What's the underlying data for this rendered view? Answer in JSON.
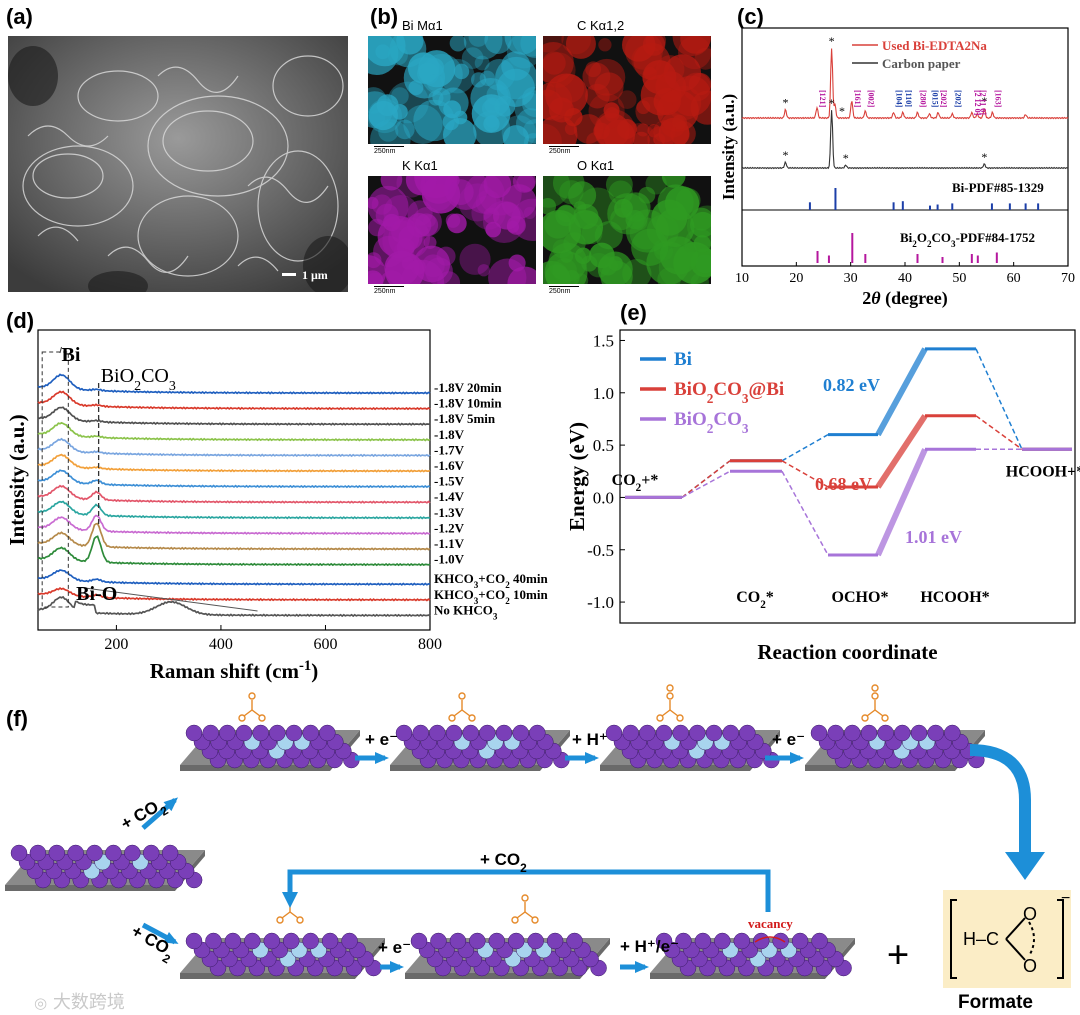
{
  "panels": {
    "a": {
      "label": "(a)",
      "scalebar": "1 μm"
    },
    "b": {
      "label": "(b)",
      "maps": [
        {
          "title": "Bi Mα1",
          "scalebar": "250nm",
          "color": "#2aa7c4"
        },
        {
          "title": "C Kα1,2",
          "scalebar": "250nm",
          "color": "#b81b12"
        },
        {
          "title": "K Kα1",
          "scalebar": "250nm",
          "color": "#a21aa8"
        },
        {
          "title": "O Kα1",
          "scalebar": "250nm",
          "color": "#2f9a22"
        }
      ]
    },
    "c": {
      "label": "(c)"
    },
    "d": {
      "label": "(d)"
    },
    "e": {
      "label": "(e)"
    },
    "f": {
      "label": "(f)"
    }
  },
  "chart_data": [
    {
      "id": "c",
      "type": "line",
      "xlabel": "2θ (degree)",
      "ylabel": "Intensity (a.u.)",
      "xlim": [
        10,
        70
      ],
      "xticks": [
        10,
        20,
        30,
        40,
        50,
        60,
        70
      ],
      "legend": {
        "position": "top-right"
      },
      "series": [
        {
          "name": "Used Bi-EDTA2Na",
          "color": "#d9403a",
          "peaks": [
            [
              18,
              0.12
            ],
            [
              23.8,
              0.15
            ],
            [
              26.5,
              1.0
            ],
            [
              27.1,
              0.2
            ],
            [
              30.2,
              0.25
            ],
            [
              32.7,
              0.1
            ],
            [
              37.9,
              0.08
            ],
            [
              39.6,
              0.08
            ],
            [
              42.3,
              0.08
            ],
            [
              44.5,
              0.06
            ],
            [
              46.1,
              0.08
            ],
            [
              48.7,
              0.06
            ],
            [
              52.3,
              0.08
            ],
            [
              53.3,
              0.06
            ],
            [
              54.6,
              0.14
            ],
            [
              56.1,
              0.08
            ],
            [
              62.2,
              0.05
            ]
          ]
        },
        {
          "name": "Carbon paper",
          "color": "#333333",
          "peaks": [
            [
              18,
              0.1
            ],
            [
              26.5,
              1.0
            ],
            [
              29.1,
              0.05
            ],
            [
              54.6,
              0.07
            ]
          ]
        }
      ],
      "markers": [
        {
          "text": "*",
          "x": 18,
          "series": 0
        },
        {
          "text": "*",
          "x": 26.5,
          "series": 0
        },
        {
          "text": "*",
          "x": 28.4,
          "series": 0
        },
        {
          "text": "*",
          "x": 54.6,
          "series": 0
        },
        {
          "text": "*",
          "x": 18,
          "series": 1
        },
        {
          "text": "*",
          "x": 26.5,
          "series": 1
        },
        {
          "text": "*",
          "x": 29.1,
          "series": 1
        },
        {
          "text": "*",
          "x": 54.6,
          "series": 1
        }
      ],
      "hkl_labels": [
        {
          "text": "[121]",
          "x": 23.8,
          "color": "#b5179e"
        },
        {
          "text": "[161]",
          "x": 30.2,
          "color": "#b5179e"
        },
        {
          "text": "[002]",
          "x": 32.7,
          "color": "#b5179e"
        },
        {
          "text": "[104]",
          "x": 37.9,
          "color": "#1c3fa8"
        },
        {
          "text": "[110]",
          "x": 39.6,
          "color": "#1c3fa8"
        },
        {
          "text": "[280]",
          "x": 42.3,
          "color": "#b5179e"
        },
        {
          "text": "[015]",
          "x": 44.5,
          "color": "#1c3fa8"
        },
        {
          "text": "[202]",
          "x": 46.1,
          "color": "#b5179e"
        },
        {
          "text": "[202]",
          "x": 48.7,
          "color": "#1c3fa8"
        },
        {
          "text": "[2 12 0]",
          "x": 52.3,
          "color": "#b5179e"
        },
        {
          "text": "[2 11 0]",
          "x": 53.3,
          "color": "#b5179e"
        },
        {
          "text": "[163]",
          "x": 56.1,
          "color": "#b5179e"
        }
      ],
      "references": [
        {
          "name": "Bi-PDF#85-1329",
          "color": "#1c3fa8",
          "sticks": [
            [
              22.5,
              0.35
            ],
            [
              27.2,
              1.0
            ],
            [
              37.9,
              0.35
            ],
            [
              39.6,
              0.4
            ],
            [
              44.6,
              0.2
            ],
            [
              46.0,
              0.25
            ],
            [
              48.7,
              0.3
            ],
            [
              56.0,
              0.3
            ],
            [
              59.3,
              0.3
            ],
            [
              62.2,
              0.3
            ],
            [
              64.5,
              0.3
            ]
          ]
        },
        {
          "name": "Bi2O2CO3-PDF#84-1752",
          "color": "#b5179e",
          "sticks": [
            [
              23.9,
              0.4
            ],
            [
              26.0,
              0.25
            ],
            [
              30.3,
              1.0
            ],
            [
              32.7,
              0.3
            ],
            [
              42.3,
              0.3
            ],
            [
              46.9,
              0.2
            ],
            [
              52.3,
              0.3
            ],
            [
              53.4,
              0.25
            ],
            [
              56.9,
              0.35
            ]
          ]
        }
      ]
    },
    {
      "id": "d",
      "type": "line",
      "xlabel": "Raman shift (cm-1)",
      "ylabel": "Intensity (a.u.)",
      "xlim": [
        50,
        800
      ],
      "xticks": [
        200,
        400,
        600,
        800
      ],
      "annotations": [
        {
          "text": "Bi",
          "x": 95
        },
        {
          "text": "BiO2CO3",
          "x": 165
        },
        {
          "text": "Bi-O",
          "x": 130
        }
      ],
      "series": [
        {
          "name": "-1.8V 20min",
          "color": "#1f5fbf",
          "bi": 1.0,
          "carb": 0.05
        },
        {
          "name": "-1.8V 10min",
          "color": "#d93a2b",
          "bi": 0.9,
          "carb": 0.05
        },
        {
          "name": "-1.8V 5min",
          "color": "#505050",
          "bi": 0.9,
          "carb": 0.05
        },
        {
          "name": "-1.8V",
          "color": "#8bc34a",
          "bi": 0.9,
          "carb": 0.05
        },
        {
          "name": "-1.7V",
          "color": "#7aa6e0",
          "bi": 0.85,
          "carb": 0.05
        },
        {
          "name": "-1.6V",
          "color": "#f2a03a",
          "bi": 0.85,
          "carb": 0.05
        },
        {
          "name": "-1.5V",
          "color": "#3d8fd6",
          "bi": 0.85,
          "carb": 0.15
        },
        {
          "name": "-1.4V",
          "color": "#e2566a",
          "bi": 0.85,
          "carb": 0.3
        },
        {
          "name": "-1.3V",
          "color": "#2aa6a0",
          "bi": 0.85,
          "carb": 0.4
        },
        {
          "name": "-1.2V",
          "color": "#c96bd1",
          "bi": 0.85,
          "carb": 0.6
        },
        {
          "name": "-1.1V",
          "color": "#b58a4a",
          "bi": 0.85,
          "carb": 0.9
        },
        {
          "name": "-1.0V",
          "color": "#2e8b3a",
          "bi": 0.9,
          "carb": 1.0
        },
        {
          "name": "KHCO3+CO2 40min",
          "color": "#1f5fbf",
          "bi": 0.7,
          "carb": 0.1
        },
        {
          "name": "KHCO3+CO2 10min",
          "color": "#d93a2b",
          "bi": 0.5,
          "carb": 0.1
        },
        {
          "name": "No KHCO3",
          "color": "#555555",
          "bi": 1.0,
          "carb": 0.0,
          "bio": 0.8
        }
      ]
    },
    {
      "id": "e",
      "type": "line",
      "xlabel": "Reaction coordinate",
      "ylabel": "Energy (eV)",
      "ylim": [
        -1.2,
        1.6
      ],
      "yticks": [
        -1.0,
        -0.5,
        0.0,
        0.5,
        1.0,
        1.5
      ],
      "categories": [
        "CO2+*",
        "CO2*",
        "OCHO*",
        "HCOOH*",
        "HCOOH+*"
      ],
      "legend": {
        "position": "top-left"
      },
      "series": [
        {
          "name": "Bi",
          "color": "#1f7fd1",
          "values": [
            0.0,
            0.35,
            0.6,
            1.42,
            0.46
          ]
        },
        {
          "name": "BiO2CO3@Bi",
          "color": "#d9403a",
          "values": [
            0.0,
            0.35,
            0.1,
            0.78,
            0.46
          ]
        },
        {
          "name": "BiO2CO3",
          "color": "#a774d9",
          "values": [
            0.0,
            0.25,
            -0.55,
            0.46,
            0.46
          ]
        }
      ],
      "barriers": [
        {
          "text": "0.82 eV",
          "color": "#1f7fd1",
          "series": 0
        },
        {
          "text": "0.68 eV",
          "color": "#d9403a",
          "series": 1
        },
        {
          "text": "1.01 eV",
          "color": "#a774d9",
          "series": 2
        }
      ]
    }
  ],
  "scheme_f": {
    "arrows": [
      "+ CO2",
      "+ e⁻",
      "+ H⁺",
      "+ e⁻",
      "+ CO2",
      "+ CO2",
      "+ e⁻",
      "+ H⁺/e⁻"
    ],
    "vacancy": "vacancy",
    "plus": "+",
    "formate_formula": "H–C",
    "formate_label": "Formate",
    "formate_charge": "−",
    "watermark": "大数跨境",
    "colors": {
      "sphere": "#7a3fb8",
      "dopant": "#a8d4ee",
      "arrow": "#1d8fd8",
      "adsorbate": "#e58a2a",
      "vacancy": "#d21a1a",
      "formate_bg": "#fbedc6"
    }
  }
}
